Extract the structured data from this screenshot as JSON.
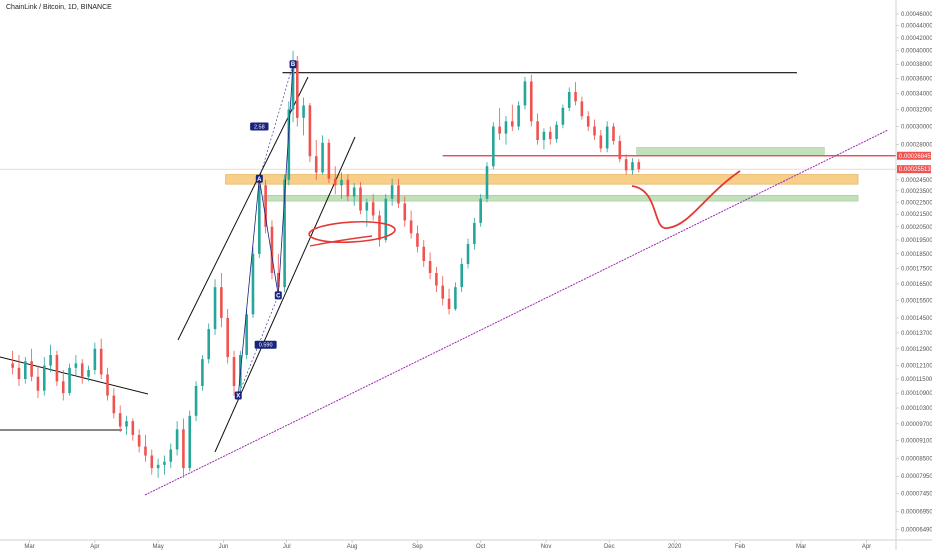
{
  "title": "ChainLink / Bitcoin, 1D, BINANCE",
  "colors": {
    "up": "#26a69a",
    "down": "#ef5350",
    "price_label": "#ef5350",
    "resistance_red": "#e53935",
    "trend_purple": "#9c27b0",
    "support_orange": "#f7c774",
    "support_green": "#b7dcae",
    "pattern_blue": "#1a237e",
    "text": "#222222",
    "axis_text": "#555555"
  },
  "chart_data": {
    "type": "candlestick",
    "title": "ChainLink / Bitcoin, 1D, BINANCE",
    "xlabel": "",
    "ylabel": "",
    "x_ticks": [
      "Mar",
      "Apr",
      "May",
      "Jun",
      "Jul",
      "Aug",
      "Sep",
      "Oct",
      "Nov",
      "Dec",
      "2020",
      "Feb",
      "Mar",
      "Apr"
    ],
    "x_tick_dates": [
      "2019-03-01",
      "2019-04-01",
      "2019-05-01",
      "2019-06-01",
      "2019-07-01",
      "2019-08-01",
      "2019-09-01",
      "2019-10-01",
      "2019-11-01",
      "2019-12-01",
      "2020-01-01",
      "2020-02-01",
      "2020-03-01",
      "2020-04-01"
    ],
    "x_range": [
      "2019-02-15",
      "2020-04-15"
    ],
    "y_ticks": [
      "0.00046000",
      "0.00044000",
      "0.00042000",
      "0.00040000",
      "0.00038000",
      "0.00036000",
      "0.00034000",
      "0.00032000",
      "0.00030000",
      "0.00028000",
      "0.00024500",
      "0.00023500",
      "0.00022500",
      "0.00021500",
      "0.00020500",
      "0.00019500",
      "0.00018500",
      "0.00017500",
      "0.00016500",
      "0.00015500",
      "0.00014500",
      "0.00013700",
      "0.00012900",
      "0.00012100",
      "0.00011500",
      "0.00010900",
      "0.00010300",
      "0.00009700",
      "0.00009100",
      "0.00008500",
      "0.00007950",
      "0.00007450",
      "0.00006950",
      "0.00006490"
    ],
    "y_range": [
      6.24e-05,
      0.000485
    ],
    "log_scale": true,
    "price_labels": [
      {
        "value": 0.00026845,
        "text": "0.00026845"
      },
      {
        "value": 0.00025513,
        "text": "0.00025513"
      }
    ],
    "candles": [
      {
        "d": "2019-02-21",
        "o": 0.000122,
        "h": 0.000128,
        "l": 0.000117,
        "c": 0.00012
      },
      {
        "d": "2019-02-24",
        "o": 0.00012,
        "h": 0.000126,
        "l": 0.000112,
        "c": 0.000115
      },
      {
        "d": "2019-02-27",
        "o": 0.000115,
        "h": 0.000125,
        "l": 0.000113,
        "c": 0.000123
      },
      {
        "d": "2019-03-02",
        "o": 0.000123,
        "h": 0.000129,
        "l": 0.000114,
        "c": 0.000116
      },
      {
        "d": "2019-03-05",
        "o": 0.000116,
        "h": 0.000121,
        "l": 0.000107,
        "c": 0.00011
      },
      {
        "d": "2019-03-08",
        "o": 0.00011,
        "h": 0.000125,
        "l": 0.000108,
        "c": 0.000121
      },
      {
        "d": "2019-03-11",
        "o": 0.000121,
        "h": 0.000131,
        "l": 0.000118,
        "c": 0.000126
      },
      {
        "d": "2019-03-14",
        "o": 0.000126,
        "h": 0.000128,
        "l": 0.000112,
        "c": 0.000114
      },
      {
        "d": "2019-03-17",
        "o": 0.000114,
        "h": 0.000119,
        "l": 0.000106,
        "c": 0.000109
      },
      {
        "d": "2019-03-20",
        "o": 0.000109,
        "h": 0.000122,
        "l": 0.000108,
        "c": 0.00012
      },
      {
        "d": "2019-03-23",
        "o": 0.00012,
        "h": 0.000126,
        "l": 0.000116,
        "c": 0.000122
      },
      {
        "d": "2019-03-26",
        "o": 0.000122,
        "h": 0.000124,
        "l": 0.000113,
        "c": 0.000116
      },
      {
        "d": "2019-03-29",
        "o": 0.000116,
        "h": 0.000121,
        "l": 0.000114,
        "c": 0.000119
      },
      {
        "d": "2019-04-01",
        "o": 0.000119,
        "h": 0.000132,
        "l": 0.000117,
        "c": 0.000129
      },
      {
        "d": "2019-04-04",
        "o": 0.000129,
        "h": 0.000134,
        "l": 0.000115,
        "c": 0.000117
      },
      {
        "d": "2019-04-07",
        "o": 0.000117,
        "h": 0.00012,
        "l": 0.000106,
        "c": 0.000108
      },
      {
        "d": "2019-04-10",
        "o": 0.000108,
        "h": 0.000111,
        "l": 9.9e-05,
        "c": 0.000101
      },
      {
        "d": "2019-04-13",
        "o": 0.000101,
        "h": 0.000104,
        "l": 9.4e-05,
        "c": 9.6e-05
      },
      {
        "d": "2019-04-16",
        "o": 9.6e-05,
        "h": 0.0001,
        "l": 9.3e-05,
        "c": 9.8e-05
      },
      {
        "d": "2019-04-19",
        "o": 9.8e-05,
        "h": 9.9e-05,
        "l": 9.1e-05,
        "c": 9.3e-05
      },
      {
        "d": "2019-04-22",
        "o": 9.3e-05,
        "h": 9.5e-05,
        "l": 8.7e-05,
        "c": 8.9e-05
      },
      {
        "d": "2019-04-25",
        "o": 8.9e-05,
        "h": 9.3e-05,
        "l": 8.4e-05,
        "c": 8.6e-05
      },
      {
        "d": "2019-04-28",
        "o": 8.6e-05,
        "h": 8.8e-05,
        "l": 8e-05,
        "c": 8.2e-05
      },
      {
        "d": "2019-05-01",
        "o": 8.2e-05,
        "h": 8.5e-05,
        "l": 7.9e-05,
        "c": 8.3e-05
      },
      {
        "d": "2019-05-04",
        "o": 8.3e-05,
        "h": 8.6e-05,
        "l": 8e-05,
        "c": 8.4e-05
      },
      {
        "d": "2019-05-07",
        "o": 8.4e-05,
        "h": 9e-05,
        "l": 8.2e-05,
        "c": 8.8e-05
      },
      {
        "d": "2019-05-10",
        "o": 8.8e-05,
        "h": 9.8e-05,
        "l": 8.6e-05,
        "c": 9.5e-05
      },
      {
        "d": "2019-05-13",
        "o": 9.5e-05,
        "h": 9.9e-05,
        "l": 7.9e-05,
        "c": 8.2e-05
      },
      {
        "d": "2019-05-16",
        "o": 8.2e-05,
        "h": 0.000102,
        "l": 8.1e-05,
        "c": 0.0001
      },
      {
        "d": "2019-05-19",
        "o": 0.0001,
        "h": 0.000114,
        "l": 9.8e-05,
        "c": 0.000112
      },
      {
        "d": "2019-05-22",
        "o": 0.000112,
        "h": 0.000126,
        "l": 0.00011,
        "c": 0.000124
      },
      {
        "d": "2019-05-25",
        "o": 0.000124,
        "h": 0.000142,
        "l": 0.000122,
        "c": 0.000139
      },
      {
        "d": "2019-05-28",
        "o": 0.000139,
        "h": 0.000168,
        "l": 0.000136,
        "c": 0.000163
      },
      {
        "d": "2019-05-31",
        "o": 0.000163,
        "h": 0.000172,
        "l": 0.00014,
        "c": 0.000145
      },
      {
        "d": "2019-06-03",
        "o": 0.000145,
        "h": 0.00015,
        "l": 0.000122,
        "c": 0.000125
      },
      {
        "d": "2019-06-06",
        "o": 0.000125,
        "h": 0.000128,
        "l": 0.000108,
        "c": 0.000112
      },
      {
        "d": "2019-06-09",
        "o": 0.000112,
        "h": 0.000128,
        "l": 0.000109,
        "c": 0.000126
      },
      {
        "d": "2019-06-12",
        "o": 0.000126,
        "h": 0.00015,
        "l": 0.000124,
        "c": 0.000147
      },
      {
        "d": "2019-06-15",
        "o": 0.000147,
        "h": 0.00019,
        "l": 0.000145,
        "c": 0.000185
      },
      {
        "d": "2019-06-18",
        "o": 0.000185,
        "h": 0.000246,
        "l": 0.000182,
        "c": 0.00024
      },
      {
        "d": "2019-06-21",
        "o": 0.00024,
        "h": 0.000245,
        "l": 0.0002,
        "c": 0.000205
      },
      {
        "d": "2019-06-24",
        "o": 0.000205,
        "h": 0.00021,
        "l": 0.000168,
        "c": 0.000172
      },
      {
        "d": "2019-06-27",
        "o": 0.000172,
        "h": 0.000185,
        "l": 0.000158,
        "c": 0.000163
      },
      {
        "d": "2019-06-30",
        "o": 0.000163,
        "h": 0.00025,
        "l": 0.00016,
        "c": 0.000245
      },
      {
        "d": "2019-07-02",
        "o": 0.000245,
        "h": 0.00033,
        "l": 0.00024,
        "c": 0.00032
      },
      {
        "d": "2019-07-04",
        "o": 0.00032,
        "h": 0.0004,
        "l": 0.000305,
        "c": 0.000385
      },
      {
        "d": "2019-07-06",
        "o": 0.000385,
        "h": 0.000392,
        "l": 0.0003,
        "c": 0.00031
      },
      {
        "d": "2019-07-09",
        "o": 0.00031,
        "h": 0.000335,
        "l": 0.00029,
        "c": 0.000325
      },
      {
        "d": "2019-07-12",
        "o": 0.000325,
        "h": 0.000328,
        "l": 0.000262,
        "c": 0.000268
      },
      {
        "d": "2019-07-15",
        "o": 0.000268,
        "h": 0.000285,
        "l": 0.000245,
        "c": 0.000252
      },
      {
        "d": "2019-07-18",
        "o": 0.000252,
        "h": 0.00029,
        "l": 0.00025,
        "c": 0.000282
      },
      {
        "d": "2019-07-21",
        "o": 0.000282,
        "h": 0.000286,
        "l": 0.000242,
        "c": 0.000246
      },
      {
        "d": "2019-07-24",
        "o": 0.000246,
        "h": 0.000258,
        "l": 0.000232,
        "c": 0.00024
      },
      {
        "d": "2019-07-27",
        "o": 0.00024,
        "h": 0.000252,
        "l": 0.000228,
        "c": 0.000245
      },
      {
        "d": "2019-07-30",
        "o": 0.000245,
        "h": 0.00025,
        "l": 0.000226,
        "c": 0.00023
      },
      {
        "d": "2019-08-02",
        "o": 0.00023,
        "h": 0.000242,
        "l": 0.000222,
        "c": 0.000238
      },
      {
        "d": "2019-08-05",
        "o": 0.000238,
        "h": 0.000243,
        "l": 0.000215,
        "c": 0.000218
      },
      {
        "d": "2019-08-08",
        "o": 0.000218,
        "h": 0.000228,
        "l": 0.000205,
        "c": 0.000225
      },
      {
        "d": "2019-08-11",
        "o": 0.000225,
        "h": 0.000232,
        "l": 0.00021,
        "c": 0.000214
      },
      {
        "d": "2019-08-14",
        "o": 0.000214,
        "h": 0.000218,
        "l": 0.00019,
        "c": 0.000195
      },
      {
        "d": "2019-08-17",
        "o": 0.000195,
        "h": 0.000232,
        "l": 0.000193,
        "c": 0.000228
      },
      {
        "d": "2019-08-20",
        "o": 0.000228,
        "h": 0.000246,
        "l": 0.000222,
        "c": 0.00024
      },
      {
        "d": "2019-08-23",
        "o": 0.00024,
        "h": 0.000246,
        "l": 0.00022,
        "c": 0.000224
      },
      {
        "d": "2019-08-26",
        "o": 0.000224,
        "h": 0.00023,
        "l": 0.000205,
        "c": 0.00021
      },
      {
        "d": "2019-08-29",
        "o": 0.00021,
        "h": 0.000218,
        "l": 0.000196,
        "c": 0.0002
      },
      {
        "d": "2019-09-01",
        "o": 0.0002,
        "h": 0.000206,
        "l": 0.000186,
        "c": 0.00019
      },
      {
        "d": "2019-09-04",
        "o": 0.00019,
        "h": 0.000195,
        "l": 0.000176,
        "c": 0.00018
      },
      {
        "d": "2019-09-07",
        "o": 0.00018,
        "h": 0.000186,
        "l": 0.000168,
        "c": 0.000172
      },
      {
        "d": "2019-09-10",
        "o": 0.000172,
        "h": 0.000176,
        "l": 0.00016,
        "c": 0.000164
      },
      {
        "d": "2019-09-13",
        "o": 0.000164,
        "h": 0.00017,
        "l": 0.000152,
        "c": 0.000156
      },
      {
        "d": "2019-09-16",
        "o": 0.000156,
        "h": 0.000162,
        "l": 0.000147,
        "c": 0.00015
      },
      {
        "d": "2019-09-19",
        "o": 0.00015,
        "h": 0.000166,
        "l": 0.000149,
        "c": 0.000163
      },
      {
        "d": "2019-09-22",
        "o": 0.000163,
        "h": 0.000182,
        "l": 0.00016,
        "c": 0.000178
      },
      {
        "d": "2019-09-25",
        "o": 0.000178,
        "h": 0.000196,
        "l": 0.000175,
        "c": 0.000192
      },
      {
        "d": "2019-09-28",
        "o": 0.000192,
        "h": 0.000212,
        "l": 0.000188,
        "c": 0.000208
      },
      {
        "d": "2019-10-01",
        "o": 0.000208,
        "h": 0.000232,
        "l": 0.000205,
        "c": 0.000228
      },
      {
        "d": "2019-10-04",
        "o": 0.000228,
        "h": 0.000262,
        "l": 0.000225,
        "c": 0.000258
      },
      {
        "d": "2019-10-07",
        "o": 0.000258,
        "h": 0.000305,
        "l": 0.000255,
        "c": 0.0003
      },
      {
        "d": "2019-10-10",
        "o": 0.0003,
        "h": 0.000322,
        "l": 0.000285,
        "c": 0.000292
      },
      {
        "d": "2019-10-13",
        "o": 0.000292,
        "h": 0.000312,
        "l": 0.00028,
        "c": 0.000306
      },
      {
        "d": "2019-10-16",
        "o": 0.000306,
        "h": 0.000326,
        "l": 0.000295,
        "c": 0.0003
      },
      {
        "d": "2019-10-19",
        "o": 0.0003,
        "h": 0.00033,
        "l": 0.000296,
        "c": 0.000325
      },
      {
        "d": "2019-10-22",
        "o": 0.000325,
        "h": 0.000362,
        "l": 0.00032,
        "c": 0.000356
      },
      {
        "d": "2019-10-25",
        "o": 0.000356,
        "h": 0.000365,
        "l": 0.0003,
        "c": 0.000306
      },
      {
        "d": "2019-10-28",
        "o": 0.000306,
        "h": 0.000315,
        "l": 0.00028,
        "c": 0.000285
      },
      {
        "d": "2019-10-31",
        "o": 0.000285,
        "h": 0.000298,
        "l": 0.000275,
        "c": 0.000294
      },
      {
        "d": "2019-11-03",
        "o": 0.000294,
        "h": 0.0003,
        "l": 0.00028,
        "c": 0.000286
      },
      {
        "d": "2019-11-06",
        "o": 0.000286,
        "h": 0.000306,
        "l": 0.000282,
        "c": 0.000302
      },
      {
        "d": "2019-11-09",
        "o": 0.000302,
        "h": 0.000326,
        "l": 0.000298,
        "c": 0.000322
      },
      {
        "d": "2019-11-12",
        "o": 0.000322,
        "h": 0.000348,
        "l": 0.000318,
        "c": 0.000342
      },
      {
        "d": "2019-11-15",
        "o": 0.000342,
        "h": 0.000355,
        "l": 0.000325,
        "c": 0.00033
      },
      {
        "d": "2019-11-18",
        "o": 0.00033,
        "h": 0.000336,
        "l": 0.000308,
        "c": 0.000312
      },
      {
        "d": "2019-11-21",
        "o": 0.000312,
        "h": 0.000318,
        "l": 0.000295,
        "c": 0.0003
      },
      {
        "d": "2019-11-24",
        "o": 0.0003,
        "h": 0.000308,
        "l": 0.000285,
        "c": 0.00029
      },
      {
        "d": "2019-11-27",
        "o": 0.00029,
        "h": 0.000296,
        "l": 0.000272,
        "c": 0.000276
      },
      {
        "d": "2019-11-30",
        "o": 0.000276,
        "h": 0.000306,
        "l": 0.000272,
        "c": 0.0003
      },
      {
        "d": "2019-12-03",
        "o": 0.0003,
        "h": 0.000304,
        "l": 0.00028,
        "c": 0.000284
      },
      {
        "d": "2019-12-06",
        "o": 0.000284,
        "h": 0.00029,
        "l": 0.000262,
        "c": 0.000265
      },
      {
        "d": "2019-12-09",
        "o": 0.000265,
        "h": 0.00027,
        "l": 0.00025,
        "c": 0.000254
      },
      {
        "d": "2019-12-12",
        "o": 0.000254,
        "h": 0.000266,
        "l": 0.00025,
        "c": 0.000262
      },
      {
        "d": "2019-12-15",
        "o": 0.000262,
        "h": 0.000265,
        "l": 0.000252,
        "c": 0.000255
      }
    ],
    "annotations": {
      "pattern_labels": [
        {
          "text": "2.58",
          "x": "2019-06-18",
          "y": 0.0003
        },
        {
          "text": "0.590",
          "x": "2019-06-21",
          "y": 0.000131
        }
      ],
      "points": [
        {
          "text": "B",
          "x": "2019-07-04",
          "y": 0.00038
        },
        {
          "text": "A",
          "x": "2019-06-18",
          "y": 0.000246
        },
        {
          "text": "C",
          "x": "2019-06-27",
          "y": 0.000158
        },
        {
          "text": "X",
          "x": "2019-06-08",
          "y": 0.000108
        }
      ],
      "resistance_level": 0.000368,
      "red_level": 0.00026845,
      "orange_zone": [
        0.000241,
        0.00025
      ],
      "green_zone_upper": [
        0.00027,
        0.000277
      ],
      "green_zone_lower": [
        0.000226,
        0.000231
      ]
    }
  }
}
